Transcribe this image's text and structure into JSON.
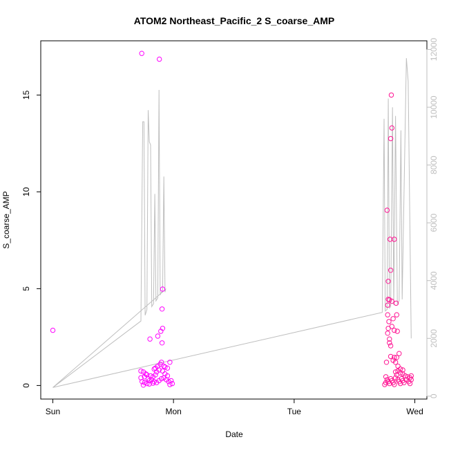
{
  "chart_data": {
    "type": "scatter",
    "title": "ATOM2 Northeast_Pacific_2 S_coarse_AMP",
    "xlabel": "Date",
    "ylabel": "S_coarse_AMP",
    "x_unit": "days",
    "x_ticks": [
      {
        "label": "Sun",
        "value": 0
      },
      {
        "label": "Mon",
        "value": 1
      },
      {
        "label": "Tue",
        "value": 2
      },
      {
        "label": "Wed",
        "value": 3
      }
    ],
    "xlim": [
      -0.1,
      3.1
    ],
    "ylim": [
      -0.7,
      17.8
    ],
    "y_ticks": [
      0,
      5,
      10,
      15
    ],
    "y2lim": [
      -100,
      12300
    ],
    "y2_ticks": [
      0,
      2000,
      4000,
      6000,
      8000,
      10000,
      12000
    ],
    "grid": false,
    "colors": {
      "points": "#ff00ff",
      "points_alt": "#ff1493",
      "line": "#bebebe",
      "axis": "#000000",
      "right_axis": "#bebebe"
    },
    "series": [
      {
        "values": [
          [
            0.0,
            2.85
          ],
          [
            0.737,
            17.15
          ],
          [
            0.883,
            16.85
          ],
          [
            0.91,
            4.98
          ],
          [
            0.905,
            3.95
          ],
          [
            0.91,
            2.95
          ],
          [
            0.895,
            2.8
          ],
          [
            0.87,
            2.55
          ],
          [
            0.805,
            2.4
          ],
          [
            0.905,
            2.2
          ],
          [
            0.73,
            0.75
          ],
          [
            0.75,
            0.7
          ],
          [
            0.77,
            0.6
          ],
          [
            0.78,
            0.55
          ],
          [
            0.73,
            0.4
          ],
          [
            0.76,
            0.45
          ],
          [
            0.79,
            0.35
          ],
          [
            0.81,
            0.5
          ],
          [
            0.83,
            0.45
          ],
          [
            0.85,
            0.55
          ],
          [
            0.74,
            0.2
          ],
          [
            0.76,
            0.15
          ],
          [
            0.78,
            0.1
          ],
          [
            0.8,
            0.25
          ],
          [
            0.82,
            0.3
          ],
          [
            0.84,
            0.2
          ],
          [
            0.86,
            0.15
          ],
          [
            0.88,
            0.25
          ],
          [
            0.9,
            0.35
          ],
          [
            0.92,
            0.4
          ],
          [
            0.94,
            0.3
          ],
          [
            0.96,
            0.2
          ],
          [
            0.98,
            0.25
          ],
          [
            0.99,
            0.1
          ],
          [
            0.87,
            1.0
          ],
          [
            0.89,
            1.1
          ],
          [
            0.9,
            1.2
          ],
          [
            0.92,
            1.0
          ],
          [
            0.95,
            0.9
          ],
          [
            0.97,
            1.2
          ],
          [
            0.84,
            0.85
          ],
          [
            0.86,
            0.7
          ],
          [
            0.88,
            0.8
          ],
          [
            0.91,
            0.75
          ],
          [
            0.93,
            0.6
          ],
          [
            0.95,
            0.5
          ],
          [
            0.97,
            0.05
          ],
          [
            0.75,
            0.02
          ],
          [
            0.8,
            0.08
          ],
          [
            0.83,
            0.12
          ],
          [
            0.85,
            0.9
          ],
          [
            0.93,
            0.95
          ]
        ]
      },
      {
        "values": [
          [
            2.77,
            9.05
          ],
          [
            2.78,
            5.38
          ],
          [
            2.78,
            4.45
          ],
          [
            2.775,
            4.15
          ],
          [
            2.79,
            4.42
          ],
          [
            2.775,
            3.65
          ],
          [
            2.785,
            3.3
          ],
          [
            2.78,
            2.95
          ],
          [
            2.775,
            2.7
          ],
          [
            2.79,
            2.2
          ],
          [
            2.795,
            7.55
          ],
          [
            2.8,
            5.95
          ],
          [
            2.805,
            15.0
          ],
          [
            2.8,
            12.75
          ],
          [
            2.81,
            13.3
          ],
          [
            2.81,
            4.35
          ],
          [
            2.82,
            3.45
          ],
          [
            2.81,
            3.05
          ],
          [
            2.79,
            2.4
          ],
          [
            2.8,
            2.05
          ],
          [
            2.83,
            7.55
          ],
          [
            2.83,
            2.85
          ],
          [
            2.845,
            4.25
          ],
          [
            2.85,
            3.65
          ],
          [
            2.855,
            2.8
          ],
          [
            2.85,
            1.45
          ],
          [
            2.87,
            1.65
          ],
          [
            2.765,
            1.2
          ],
          [
            2.8,
            1.5
          ],
          [
            2.82,
            1.3
          ],
          [
            2.83,
            1.45
          ],
          [
            2.84,
            1.2
          ],
          [
            2.86,
            1.0
          ],
          [
            2.88,
            0.85
          ],
          [
            2.9,
            0.6
          ],
          [
            2.92,
            0.5
          ],
          [
            2.94,
            0.45
          ],
          [
            2.96,
            0.4
          ],
          [
            2.97,
            0.3
          ],
          [
            2.76,
            0.45
          ],
          [
            2.77,
            0.3
          ],
          [
            2.78,
            0.2
          ],
          [
            2.79,
            0.1
          ],
          [
            2.8,
            0.35
          ],
          [
            2.81,
            0.25
          ],
          [
            2.82,
            0.15
          ],
          [
            2.83,
            0.05
          ],
          [
            2.84,
            0.4
          ],
          [
            2.85,
            0.55
          ],
          [
            2.86,
            0.3
          ],
          [
            2.87,
            0.2
          ],
          [
            2.88,
            0.1
          ],
          [
            2.89,
            0.35
          ],
          [
            2.9,
            0.25
          ],
          [
            2.91,
            0.15
          ],
          [
            2.93,
            0.3
          ],
          [
            2.95,
            0.2
          ],
          [
            2.96,
            0.1
          ],
          [
            2.97,
            0.5
          ],
          [
            2.75,
            0.05
          ],
          [
            2.76,
            0.15
          ],
          [
            2.84,
            0.7
          ],
          [
            2.86,
            0.75
          ],
          [
            2.88,
            0.65
          ],
          [
            2.9,
            0.8
          ]
        ]
      },
      {
        "axis": "right",
        "line": true,
        "values": [
          [
            0.0,
            300
          ],
          [
            0.73,
            2600
          ],
          [
            0.745,
            9500
          ],
          [
            0.755,
            9500
          ],
          [
            0.765,
            2800
          ],
          [
            0.78,
            3000
          ],
          [
            0.79,
            9900
          ],
          [
            0.8,
            8800
          ],
          [
            0.81,
            8700
          ],
          [
            0.82,
            3100
          ],
          [
            0.835,
            3200
          ],
          [
            0.845,
            7000
          ],
          [
            0.855,
            3300
          ],
          [
            0.87,
            3400
          ],
          [
            0.88,
            10600
          ],
          [
            0.89,
            3500
          ],
          [
            0.9,
            3600
          ],
          [
            0.91,
            3600
          ],
          [
            0.92,
            7600
          ],
          [
            0.93,
            3600
          ],
          [
            0.935,
            3700
          ],
          [
            0.0,
            300
          ],
          [
            2.73,
            2900
          ],
          [
            2.745,
            9600
          ],
          [
            2.755,
            2950
          ],
          [
            2.77,
            3000
          ],
          [
            2.78,
            10300
          ],
          [
            2.79,
            3050
          ],
          [
            2.8,
            3100
          ],
          [
            2.815,
            10000
          ],
          [
            2.825,
            3150
          ],
          [
            2.84,
            9700
          ],
          [
            2.855,
            3200
          ],
          [
            2.87,
            3300
          ],
          [
            2.885,
            9200
          ],
          [
            2.895,
            3350
          ],
          [
            2.93,
            11700
          ],
          [
            2.945,
            10900
          ],
          [
            2.97,
            2000
          ]
        ]
      }
    ]
  }
}
